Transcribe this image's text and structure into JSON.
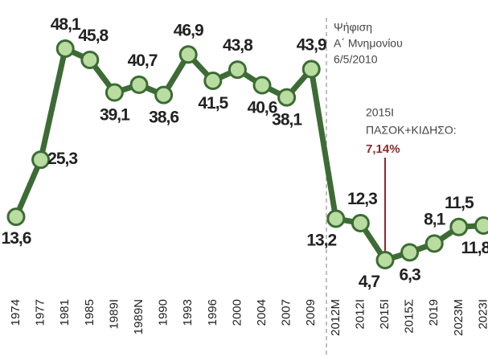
{
  "chart_data": {
    "type": "line",
    "categories": [
      "1974",
      "1977",
      "1981",
      "1985",
      "1989I",
      "1989N",
      "1990",
      "1993",
      "1996",
      "2000",
      "2004",
      "2007",
      "2009",
      "2012M",
      "2012I",
      "2015I",
      "2015Σ",
      "2019",
      "2023M",
      "2023I"
    ],
    "series": [
      {
        "color": "#3d6b35",
        "values": [
          13.6,
          25.3,
          48.1,
          45.8,
          39.1,
          40.7,
          38.6,
          46.9,
          41.5,
          43.8,
          40.6,
          38.1,
          43.9,
          13.2,
          12.3,
          4.7,
          6.3,
          8.1,
          11.5,
          11.8
        ],
        "value_labels": [
          "13,6",
          "25,3",
          "48,1",
          "45,8",
          "39,1",
          "40,7",
          "38,6",
          "46,9",
          "41,5",
          "43,8",
          "40,6",
          "38,1",
          "43,9",
          "13,2",
          "12,3",
          "4,7",
          "6,3",
          "8,1",
          "11,5",
          "11,8"
        ]
      }
    ],
    "ylim": [
      0,
      50
    ],
    "annotations": [
      {
        "lines": [
          "Ψήφιση",
          "Α΄ Μνημονίου",
          "6/5/2010"
        ]
      },
      {
        "lines": [
          "2015Ι",
          "ΠΑΣΟΚ+ΚΙΔΗΣΟ:"
        ],
        "highlight": "7,14%"
      }
    ]
  }
}
